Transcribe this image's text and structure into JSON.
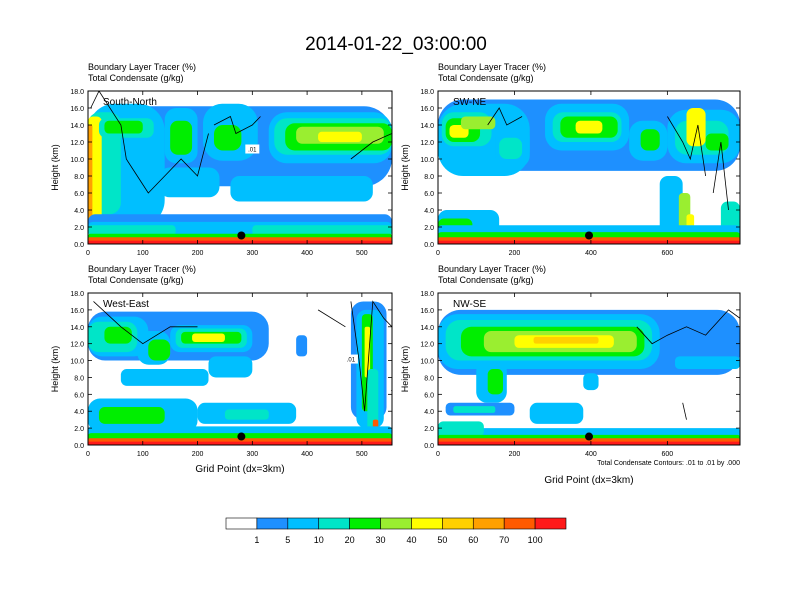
{
  "title": "2014-01-22_03:00:00",
  "colors": {
    "levels": [
      "#ffffff",
      "#1e90ff",
      "#00bfff",
      "#00e5c8",
      "#00ee00",
      "#9aee30",
      "#ffff00",
      "#ffd000",
      "#ffa000",
      "#ff5a00",
      "#ff1a1a"
    ],
    "contour": "#000000",
    "marker": "#000000"
  },
  "chart_data": [
    {
      "type": "heatmap",
      "cross_section": "South-North",
      "title_lines": [
        "Boundary Layer Tracer   (%)",
        "Total Condensate   (g/kg)"
      ],
      "ylabel": "Height (km)",
      "xlabel": "",
      "xlim": [
        0,
        555
      ],
      "ylim": [
        0,
        18
      ],
      "xticks": [
        0,
        100,
        200,
        300,
        400,
        500
      ],
      "yticks": [
        "0.0",
        "2.0",
        "4.0",
        "6.0",
        "8.0",
        "10.0",
        "12.0",
        "14.0",
        "16.0",
        "18.0"
      ],
      "contour_labels": [
        ".01"
      ],
      "marker": {
        "x": 280,
        "y": 1.0
      }
    },
    {
      "type": "heatmap",
      "cross_section": "SW-NE",
      "title_lines": [
        "Boundary Layer Tracer   (%)",
        "Total Condensate   (g/kg)"
      ],
      "ylabel": "Height (km)",
      "xlabel": "",
      "xlim": [
        0,
        790
      ],
      "ylim": [
        0,
        18
      ],
      "xticks": [
        0,
        200,
        400,
        600
      ],
      "yticks": [
        "0.0",
        "2.0",
        "4.0",
        "6.0",
        "8.0",
        "10.0",
        "12.0",
        "14.0",
        "16.0",
        "18.0"
      ],
      "contour_labels": [],
      "marker": {
        "x": 395,
        "y": 1.0
      }
    },
    {
      "type": "heatmap",
      "cross_section": "West-East",
      "title_lines": [
        "Boundary Layer Tracer   (%)",
        "Total Condensate   (g/kg)"
      ],
      "ylabel": "Height (km)",
      "xlabel": "Grid Point (dx=3km)",
      "xlim": [
        0,
        555
      ],
      "ylim": [
        0,
        18
      ],
      "xticks": [
        0,
        100,
        200,
        300,
        400,
        500
      ],
      "yticks": [
        "0.0",
        "2.0",
        "4.0",
        "6.0",
        "8.0",
        "10.0",
        "12.0",
        "14.0",
        "16.0",
        "18.0"
      ],
      "contour_labels": [
        ".01",
        ".01"
      ],
      "marker": {
        "x": 280,
        "y": 1.0
      }
    },
    {
      "type": "heatmap",
      "cross_section": "NW-SE",
      "title_lines": [
        "Boundary Layer Tracer   (%)",
        "Total Condensate   (g/kg)"
      ],
      "ylabel": "Height (km)",
      "xlabel": "Grid Point (dx=3km)",
      "xlim": [
        0,
        790
      ],
      "ylim": [
        0,
        18
      ],
      "xticks": [
        0,
        200,
        400,
        600
      ],
      "yticks": [
        "0.0",
        "2.0",
        "4.0",
        "6.0",
        "8.0",
        "10.0",
        "12.0",
        "14.0",
        "16.0",
        "18.0"
      ],
      "contour_labels": [],
      "marker": {
        "x": 395,
        "y": 1.0
      },
      "footnote": "Total Condensate Contours: .01 to .01 by .000"
    }
  ],
  "colorbar": {
    "labels": [
      "1",
      "5",
      "10",
      "20",
      "30",
      "40",
      "50",
      "60",
      "70",
      "100"
    ],
    "colors": [
      "#ffffff",
      "#1e90ff",
      "#00bfff",
      "#00e5c8",
      "#00ee00",
      "#9aee30",
      "#ffff00",
      "#ffd000",
      "#ffa000",
      "#ff5a00",
      "#ff1a1a"
    ]
  }
}
